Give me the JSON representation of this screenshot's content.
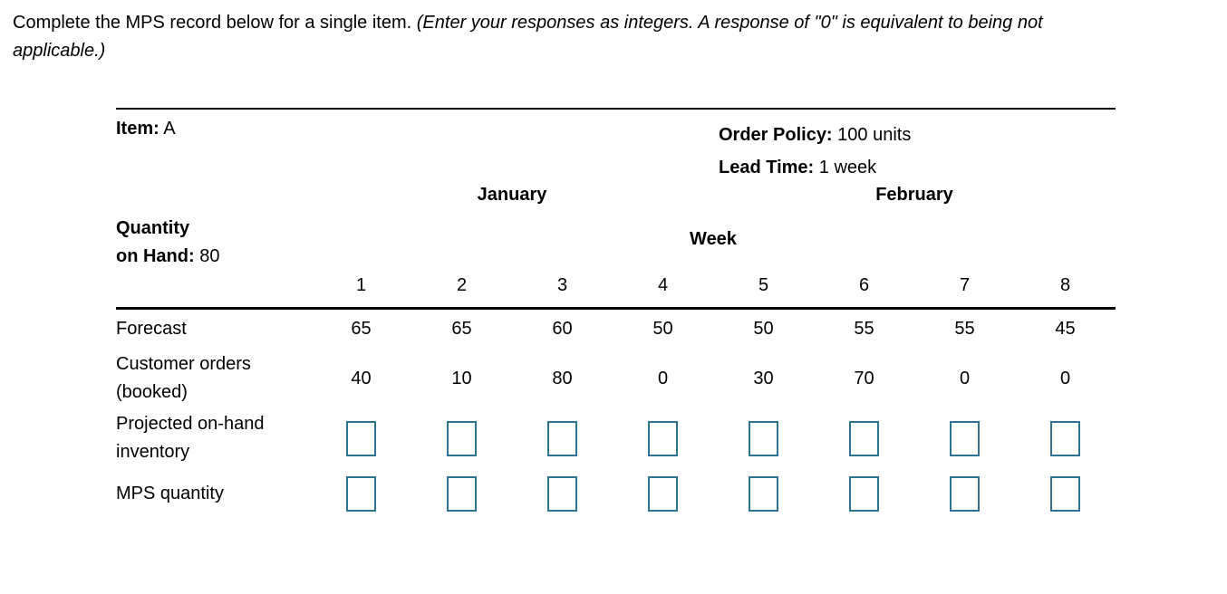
{
  "prompt": {
    "normal": "Complete the MPS record below for a single item. ",
    "italic": "(Enter your responses as integers. A response of \"0\" is equivalent to being not applicable.)"
  },
  "record": {
    "item_label": "Item:",
    "item_value": "A",
    "order_policy_label": "Order Policy:",
    "order_policy_value": "100 units",
    "lead_time_label": "Lead Time:",
    "lead_time_value": "1 week",
    "month_1": "January",
    "month_2": "February",
    "qoh_label_line1": "Quantity",
    "qoh_label_line2": "on Hand:",
    "qoh_value": "80",
    "week_header": "Week",
    "week_numbers": [
      "1",
      "2",
      "3",
      "4",
      "5",
      "6",
      "7",
      "8"
    ],
    "data_rows": [
      {
        "key": "forecast",
        "label_lines": [
          "Forecast"
        ],
        "values": [
          "65",
          "65",
          "60",
          "50",
          "50",
          "55",
          "55",
          "45"
        ]
      },
      {
        "key": "customer-orders-booked",
        "label_lines": [
          "Customer orders",
          "(booked)"
        ],
        "values": [
          "40",
          "10",
          "80",
          "0",
          "30",
          "70",
          "0",
          "0"
        ]
      }
    ],
    "input_rows": [
      {
        "key": "projected-on-hand-inventory",
        "label_lines": [
          "Projected on-hand",
          "inventory"
        ],
        "values": [
          "",
          "",
          "",
          "",
          "",
          "",
          "",
          ""
        ]
      },
      {
        "key": "mps-quantity",
        "label_lines": [
          "MPS quantity"
        ],
        "values": [
          "",
          "",
          "",
          "",
          "",
          "",
          "",
          ""
        ]
      }
    ]
  },
  "colors": {
    "input_border": "#2f7393",
    "rule": "#000000"
  }
}
